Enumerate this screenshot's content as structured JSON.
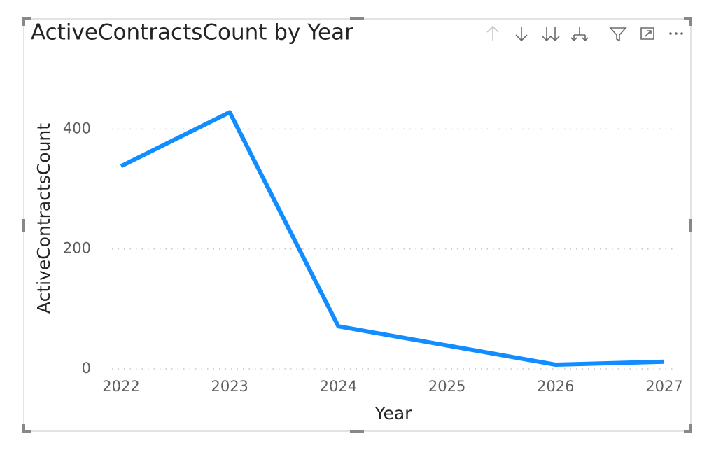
{
  "chart_data": {
    "type": "line",
    "title": "ActiveContractsCount by Year",
    "x_label": "Year",
    "y_label": "ActiveContractsCount",
    "x": [
      2022,
      2023,
      2024,
      2026,
      2027
    ],
    "series": [
      {
        "name": "ActiveContractsCount",
        "color": "#118dff",
        "values": [
          338,
          428,
          71,
          7,
          12
        ]
      }
    ],
    "xlim": [
      2022,
      2027
    ],
    "xticks": [
      2022,
      2023,
      2024,
      2025,
      2026,
      2027
    ],
    "ylim": [
      0,
      460
    ],
    "yticks": [
      0,
      200,
      400
    ],
    "grid": true
  }
}
